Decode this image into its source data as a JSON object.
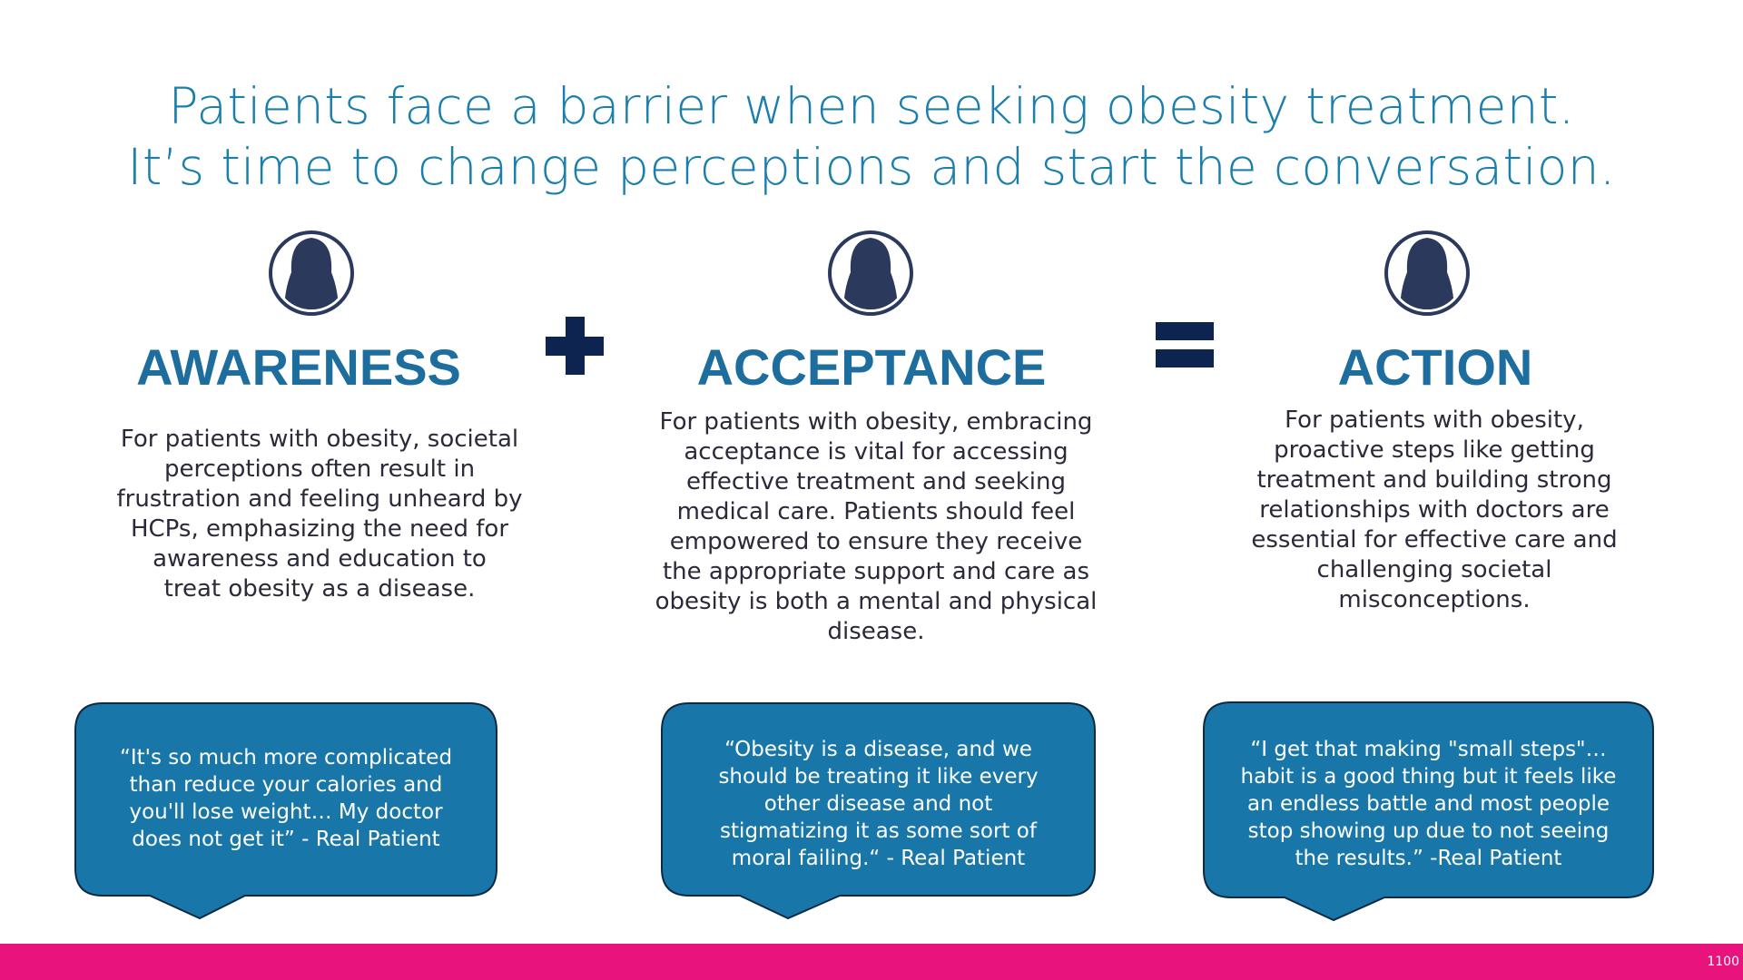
{
  "title": {
    "lines": [
      "Patients face a barrier when seeking obesity treatment.",
      "It’s time to change perceptions and start the conversation."
    ]
  },
  "columns": [
    {
      "heading": "AWARENESS",
      "body": [
        "For patients with obesity, societal",
        "perceptions often result in",
        "frustration and feeling unheard by",
        "HCPs, emphasizing the need for",
        "awareness and education to",
        "treat obesity as a disease."
      ],
      "quote": [
        "“It's so much more complicated",
        "than reduce your calories and",
        "you'll lose weight… My doctor",
        "does not get it” - Real Patient"
      ]
    },
    {
      "heading": "ACCEPTANCE",
      "body": [
        "For patients with obesity, embracing",
        "acceptance is vital for accessing",
        "effective treatment and seeking",
        "medical care. Patients should feel",
        "empowered to ensure they receive",
        "the appropriate support and care as",
        "obesity is both a mental and physical",
        "disease."
      ],
      "quote": [
        "“Obesity is a disease, and we",
        "should be treating it like every",
        "other disease and not",
        "stigmatizing it as some sort of",
        "moral failing.“ - Real Patient"
      ]
    },
    {
      "heading": "ACTION",
      "body": [
        "For patients with obesity,",
        "proactive steps like getting",
        "treatment and building strong",
        "relationships with doctors are",
        "essential for effective care and",
        "challenging societal",
        "misconceptions."
      ],
      "quote": [
        "“I get that making \"small steps\"…",
        "habit is a good thing but it feels like",
        "an endless battle and most people",
        "stop showing up due to not seeing",
        "the results.” -Real Patient"
      ]
    }
  ],
  "footer": {
    "page_number": "1100"
  }
}
